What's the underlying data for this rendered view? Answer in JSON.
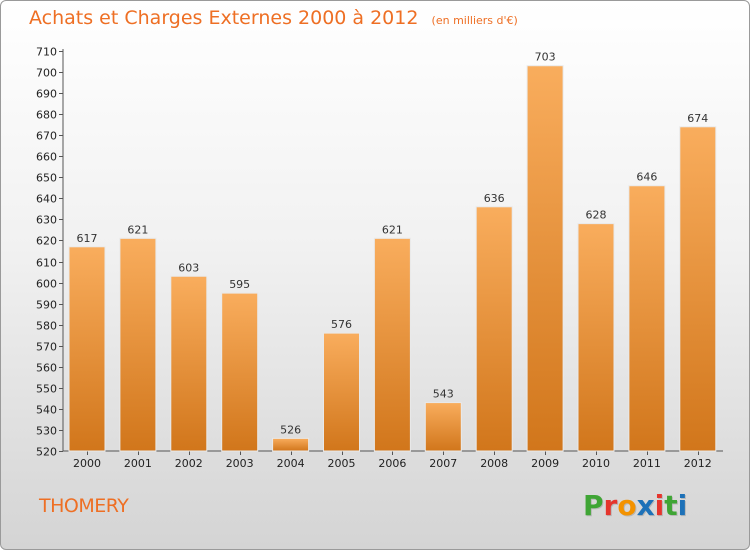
{
  "header": {
    "title": "Achats et Charges Externes 2000 à 2012",
    "unit": "(en milliers d'€)"
  },
  "footer": {
    "city": "THOMERY",
    "brand_letters": [
      "P",
      "r",
      "o",
      "x",
      "i",
      "t",
      "i"
    ],
    "brand_colors": [
      "#3fa535",
      "#e5352d",
      "#f39200",
      "#1d71b8",
      "#e5352d",
      "#3fa535",
      "#1d71b8"
    ]
  },
  "colors": {
    "bar_light": "#f9ad5d",
    "bar_dark": "#d1761b",
    "title": "#ee6f24"
  },
  "chart_data": {
    "type": "bar",
    "title": "Achats et Charges Externes 2000 à 2012",
    "subtitle": "(en milliers d'€)",
    "categories": [
      "2000",
      "2001",
      "2002",
      "2003",
      "2004",
      "2005",
      "2006",
      "2007",
      "2008",
      "2009",
      "2010",
      "2011",
      "2012"
    ],
    "values": [
      617,
      621,
      603,
      595,
      526,
      576,
      621,
      543,
      636,
      703,
      628,
      646,
      674
    ],
    "ylim": [
      520,
      710
    ],
    "ytick_step": 10,
    "grid": false,
    "legend": "none"
  }
}
